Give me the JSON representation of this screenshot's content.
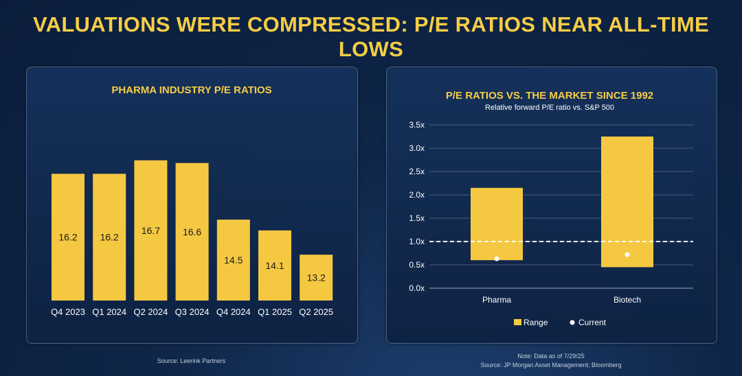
{
  "title": "VALUATIONS WERE COMPRESSED: P/E RATIOS NEAR ALL-TIME LOWS",
  "left": {
    "source": "Source: Leerink Partners"
  },
  "right": {
    "note": "Note: Data as of 7/29/25",
    "source": "Source: JP Morgan Asset Management; Bloomberg"
  },
  "colors": {
    "accent": "#f5cd46",
    "bar": "#f5c842",
    "text_dark": "#1a1a1a"
  },
  "chart_data": [
    {
      "type": "bar",
      "title": "PHARMA INDUSTRY P/E RATIOS",
      "categories": [
        "Q4 2023",
        "Q1 2024",
        "Q2 2024",
        "Q3 2024",
        "Q4 2024",
        "Q1 2025",
        "Q2 2025"
      ],
      "values": [
        16.2,
        16.2,
        16.7,
        16.6,
        14.5,
        14.1,
        13.2
      ],
      "data_labels": [
        "16.2",
        "16.2",
        "16.7",
        "16.6",
        "14.5",
        "14.1",
        "13.2"
      ],
      "ylim": [
        11.5,
        17.2
      ],
      "grid": false
    },
    {
      "type": "bar",
      "title": "P/E RATIOS VS. THE MARKET SINCE 1992",
      "subtitle": "Relative forward P/E ratio vs. S&P 500",
      "categories": [
        "Pharma",
        "Biotech"
      ],
      "series": [
        {
          "name": "Range",
          "low": [
            0.6,
            0.45
          ],
          "high": [
            2.15,
            3.25
          ]
        },
        {
          "name": "Current",
          "values": [
            0.63,
            0.72
          ]
        }
      ],
      "reference_line": 1.0,
      "yticks": [
        0,
        0.5,
        1.0,
        1.5,
        2.0,
        2.5,
        3.0,
        3.5
      ],
      "ytick_labels": [
        "0.0x",
        "0.5x",
        "1.0x",
        "1.5x",
        "2.0x",
        "2.5x",
        "3.0x",
        "3.5x"
      ],
      "ylim": [
        0,
        3.5
      ],
      "grid": true,
      "legend": {
        "placement": "bottom",
        "labels": [
          "Range",
          "Current"
        ]
      }
    }
  ]
}
